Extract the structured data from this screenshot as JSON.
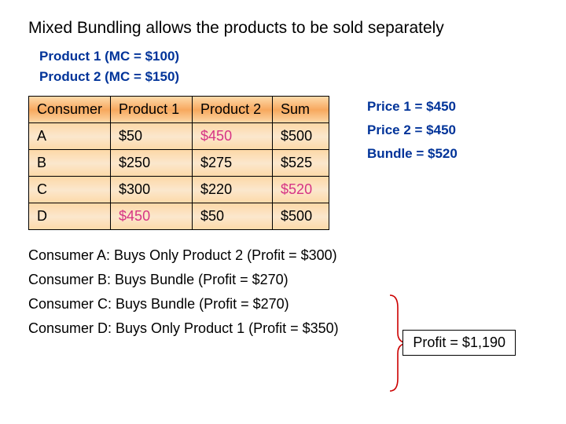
{
  "title": "Mixed Bundling allows the products to be sold separately",
  "mc": {
    "p1": "Product 1 (MC = $100)",
    "p2": "Product 2 (MC = $150)"
  },
  "table": {
    "headers": {
      "c": "Consumer",
      "p1": "Product  1",
      "p2": "Product 2",
      "sum": "Sum"
    },
    "rows": [
      {
        "c": "A",
        "p1": "$50",
        "p2": "$450",
        "sum": "$500",
        "hl": "p2"
      },
      {
        "c": "B",
        "p1": "$250",
        "p2": "$275",
        "sum": "$525",
        "hl": ""
      },
      {
        "c": "C",
        "p1": "$300",
        "p2": "$220",
        "sum": "$520",
        "hl": "sum"
      },
      {
        "c": "D",
        "p1": "$450",
        "p2": "$50",
        "sum": "$500",
        "hl": "p1"
      }
    ],
    "background_gradient": [
      "#fdd9a8",
      "#f7a85e",
      "#fdd9a8"
    ],
    "highlight_color": "#d63384",
    "border_color": "#000000",
    "fontsize": 18
  },
  "prices": {
    "p1": "Price 1 = $450",
    "p2": "Price 2 = $450",
    "bundle": "Bundle = $520",
    "color": "#003399"
  },
  "consumers": {
    "a": "Consumer A: Buys Only Product 2 (Profit = $300)",
    "b": "Consumer B: Buys Bundle (Profit = $270)",
    "c": "Consumer C: Buys Bundle (Profit = $270)",
    "d": "Consumer D: Buys Only Product 1 (Profit = $350)"
  },
  "profit": "Profit = $1,190",
  "bracket_color": "#cc0000",
  "colors": {
    "title": "#000000",
    "mc_text": "#003399",
    "body_text": "#000000",
    "background": "#ffffff"
  }
}
